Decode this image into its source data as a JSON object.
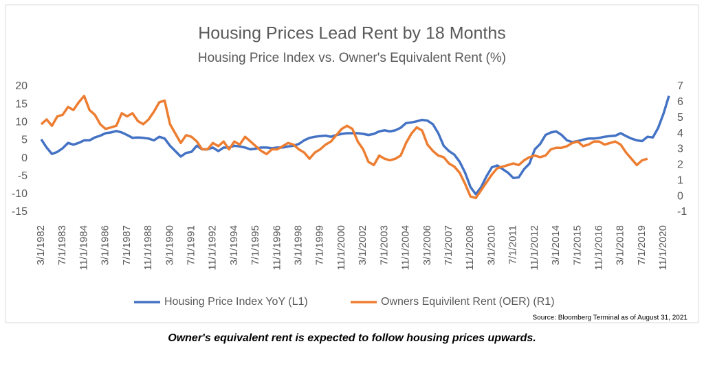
{
  "chart_data": {
    "type": "line",
    "title": "Housing Prices Lead Rent by 18 Months",
    "subtitle": "Housing Price Index vs. Owner's Equivalent Rent (%)",
    "note": "Source: Bloomberg Terminal as of August 31, 2021",
    "caption": "Owner's equivalent rent is expected to follow housing prices upwards.",
    "categories": [
      "3/1/1982",
      null,
      null,
      null,
      "7/1/1983",
      null,
      null,
      null,
      "11/1/1984",
      null,
      null,
      null,
      "3/1/1986",
      null,
      null,
      null,
      "7/1/1987",
      null,
      null,
      null,
      "11/1/1988",
      null,
      null,
      null,
      "3/1/1990",
      null,
      null,
      null,
      "7/1/1991",
      null,
      null,
      null,
      "11/1/1992",
      null,
      null,
      null,
      "3/1/1994",
      null,
      null,
      null,
      "7/1/1995",
      null,
      null,
      null,
      "11/1/1996",
      null,
      null,
      null,
      "3/1/1998",
      null,
      null,
      null,
      "7/1/1999",
      null,
      null,
      null,
      "11/1/2000",
      null,
      null,
      null,
      "3/1/2002",
      null,
      null,
      null,
      "7/1/2003",
      null,
      null,
      null,
      "11/1/2004",
      null,
      null,
      null,
      "3/1/2006",
      null,
      null,
      null,
      "7/1/2007",
      null,
      null,
      null,
      "11/1/2008",
      null,
      null,
      null,
      "3/1/2010",
      null,
      null,
      null,
      "7/1/2011",
      null,
      null,
      null,
      "11/1/2012",
      null,
      null,
      null,
      "3/1/2014",
      null,
      null,
      null,
      "7/1/2015",
      null,
      null,
      null,
      "11/1/2016",
      null,
      null,
      null,
      "3/1/2018",
      null,
      null,
      null,
      "7/1/2019",
      null,
      null,
      null,
      "11/1/2020",
      null
    ],
    "series": [
      {
        "name": "Housing Price Index YoY (L1)",
        "color": "#4472c4",
        "axis": "y",
        "values": [
          5.3,
          3,
          1.2,
          1.8,
          2.8,
          4.3,
          3.8,
          4.3,
          5,
          5,
          5.8,
          6.3,
          7,
          7.2,
          7.6,
          7.2,
          6.5,
          5.7,
          5.8,
          5.7,
          5.5,
          5,
          6,
          5.5,
          3.5,
          2,
          0.5,
          1.5,
          1.8,
          3.5,
          2.5,
          2.5,
          3,
          2,
          3,
          3,
          3.5,
          3.3,
          3,
          2.5,
          2.7,
          3,
          3,
          2.8,
          3,
          3,
          3.3,
          3.5,
          4,
          5,
          5.7,
          6,
          6.2,
          6.3,
          6,
          6.5,
          6.8,
          7,
          7,
          7,
          6.8,
          6.5,
          6.8,
          7.5,
          7.8,
          7.5,
          7.8,
          8.5,
          9.8,
          10,
          10.3,
          10.7,
          10.5,
          9.5,
          7,
          3.5,
          2,
          1,
          -1,
          -4,
          -8,
          -10,
          -8,
          -5,
          -2.5,
          -2,
          -3,
          -4,
          -5.5,
          -5.3,
          -3,
          -1.5,
          2.5,
          4,
          6.5,
          7.2,
          7.5,
          6.5,
          5,
          4.5,
          4.8,
          5.2,
          5.5,
          5.5,
          5.7,
          6,
          6.2,
          6.3,
          7,
          6.2,
          5.5,
          5,
          4.8,
          6,
          5.8,
          8.5,
          12.5,
          17.4
        ]
      },
      {
        "name": "Owners Equivilent Rent (OER) (R1)",
        "color": "#ed7d31",
        "axis": "y2",
        "values": [
          4.6,
          4.9,
          4.5,
          5.1,
          5.2,
          5.7,
          5.5,
          6,
          6.4,
          5.5,
          5.2,
          4.6,
          4.3,
          4.4,
          4.5,
          5.3,
          5.1,
          5.3,
          4.8,
          4.6,
          4.9,
          5.4,
          6,
          6.1,
          4.6,
          4,
          3.4,
          3.9,
          3.8,
          3.5,
          3,
          3,
          3.4,
          3.2,
          3.5,
          3,
          3.5,
          3.3,
          3.8,
          3.5,
          3.2,
          2.9,
          2.7,
          3,
          3,
          3.2,
          3.4,
          3.3,
          3,
          2.8,
          2.4,
          2.8,
          3,
          3.3,
          3.5,
          3.9,
          4.3,
          4.5,
          4.3,
          3.5,
          3,
          2.2,
          2,
          2.6,
          2.4,
          2.3,
          2.4,
          2.6,
          3.4,
          4,
          4.4,
          4.2,
          3.3,
          2.9,
          2.6,
          2.5,
          2.1,
          1.9,
          1.5,
          0.8,
          0,
          -0.1,
          0.4,
          0.9,
          1.4,
          1.8,
          1.9,
          2,
          2.1,
          2,
          2.3,
          2.5,
          2.6,
          2.5,
          2.6,
          3,
          3.1,
          3.1,
          3.2,
          3.4,
          3.5,
          3.2,
          3.3,
          3.5,
          3.5,
          3.3,
          3.4,
          3.5,
          3.3,
          2.8,
          2.4,
          2,
          2.3,
          2.4,
          null,
          null,
          null,
          null
        ]
      }
    ],
    "ylim": [
      -15,
      20
    ],
    "yticks": [
      -15,
      -10,
      -5,
      0,
      5,
      10,
      15,
      20
    ],
    "y2lim": [
      -1,
      7
    ],
    "y2ticks": [
      -1,
      0,
      1,
      2,
      3,
      4,
      5,
      6,
      7
    ],
    "grid": false,
    "legend": "bottom"
  }
}
